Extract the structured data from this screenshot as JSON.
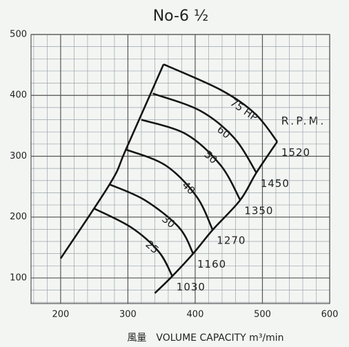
{
  "chart_data": {
    "type": "line",
    "title": "No-6 ½",
    "xlabel": "風量　VOLUME CAPACITY m³/min",
    "annotation": "R.P.M.",
    "color": "#151515",
    "grid": true,
    "minor_grid": 20,
    "xlim": [
      156,
      600
    ],
    "xticks": [
      200,
      300,
      400,
      500,
      600
    ],
    "ylim": [
      58,
      500
    ],
    "yticks": [
      100,
      200,
      300,
      400,
      500
    ],
    "series": [
      {
        "name": "75 HP",
        "rpm": "1520",
        "x": [
          353,
          438,
          489,
          522
        ],
        "y": [
          451,
          409,
          370,
          324
        ]
      },
      {
        "name": "60",
        "rpm": "1450",
        "x": [
          337,
          407,
          458,
          491
        ],
        "y": [
          403,
          375,
          330,
          273
        ]
      },
      {
        "name": "50",
        "rpm": "1350",
        "x": [
          320,
          387,
          438,
          467
        ],
        "y": [
          360,
          336,
          285,
          228
        ]
      },
      {
        "name": "40",
        "rpm": "1270",
        "x": [
          297,
          356,
          402,
          426
        ],
        "y": [
          311,
          285,
          234,
          179
        ]
      },
      {
        "name": "30",
        "rpm": "1160",
        "x": [
          272,
          325,
          376,
          397
        ],
        "y": [
          254,
          228,
          183,
          140
        ]
      },
      {
        "name": "25",
        "rpm": "1030",
        "x": [
          250,
          305,
          346,
          366
        ],
        "y": [
          214,
          183,
          143,
          103
        ]
      }
    ],
    "boundaries": [
      {
        "x": [
          200,
          274,
          297,
          353
        ],
        "y": [
          132,
          256,
          311,
          451
        ]
      },
      {
        "x": [
          522,
          491,
          467,
          426,
          397,
          366,
          340
        ],
        "y": [
          324,
          273,
          228,
          179,
          140,
          103,
          75
        ]
      }
    ]
  }
}
